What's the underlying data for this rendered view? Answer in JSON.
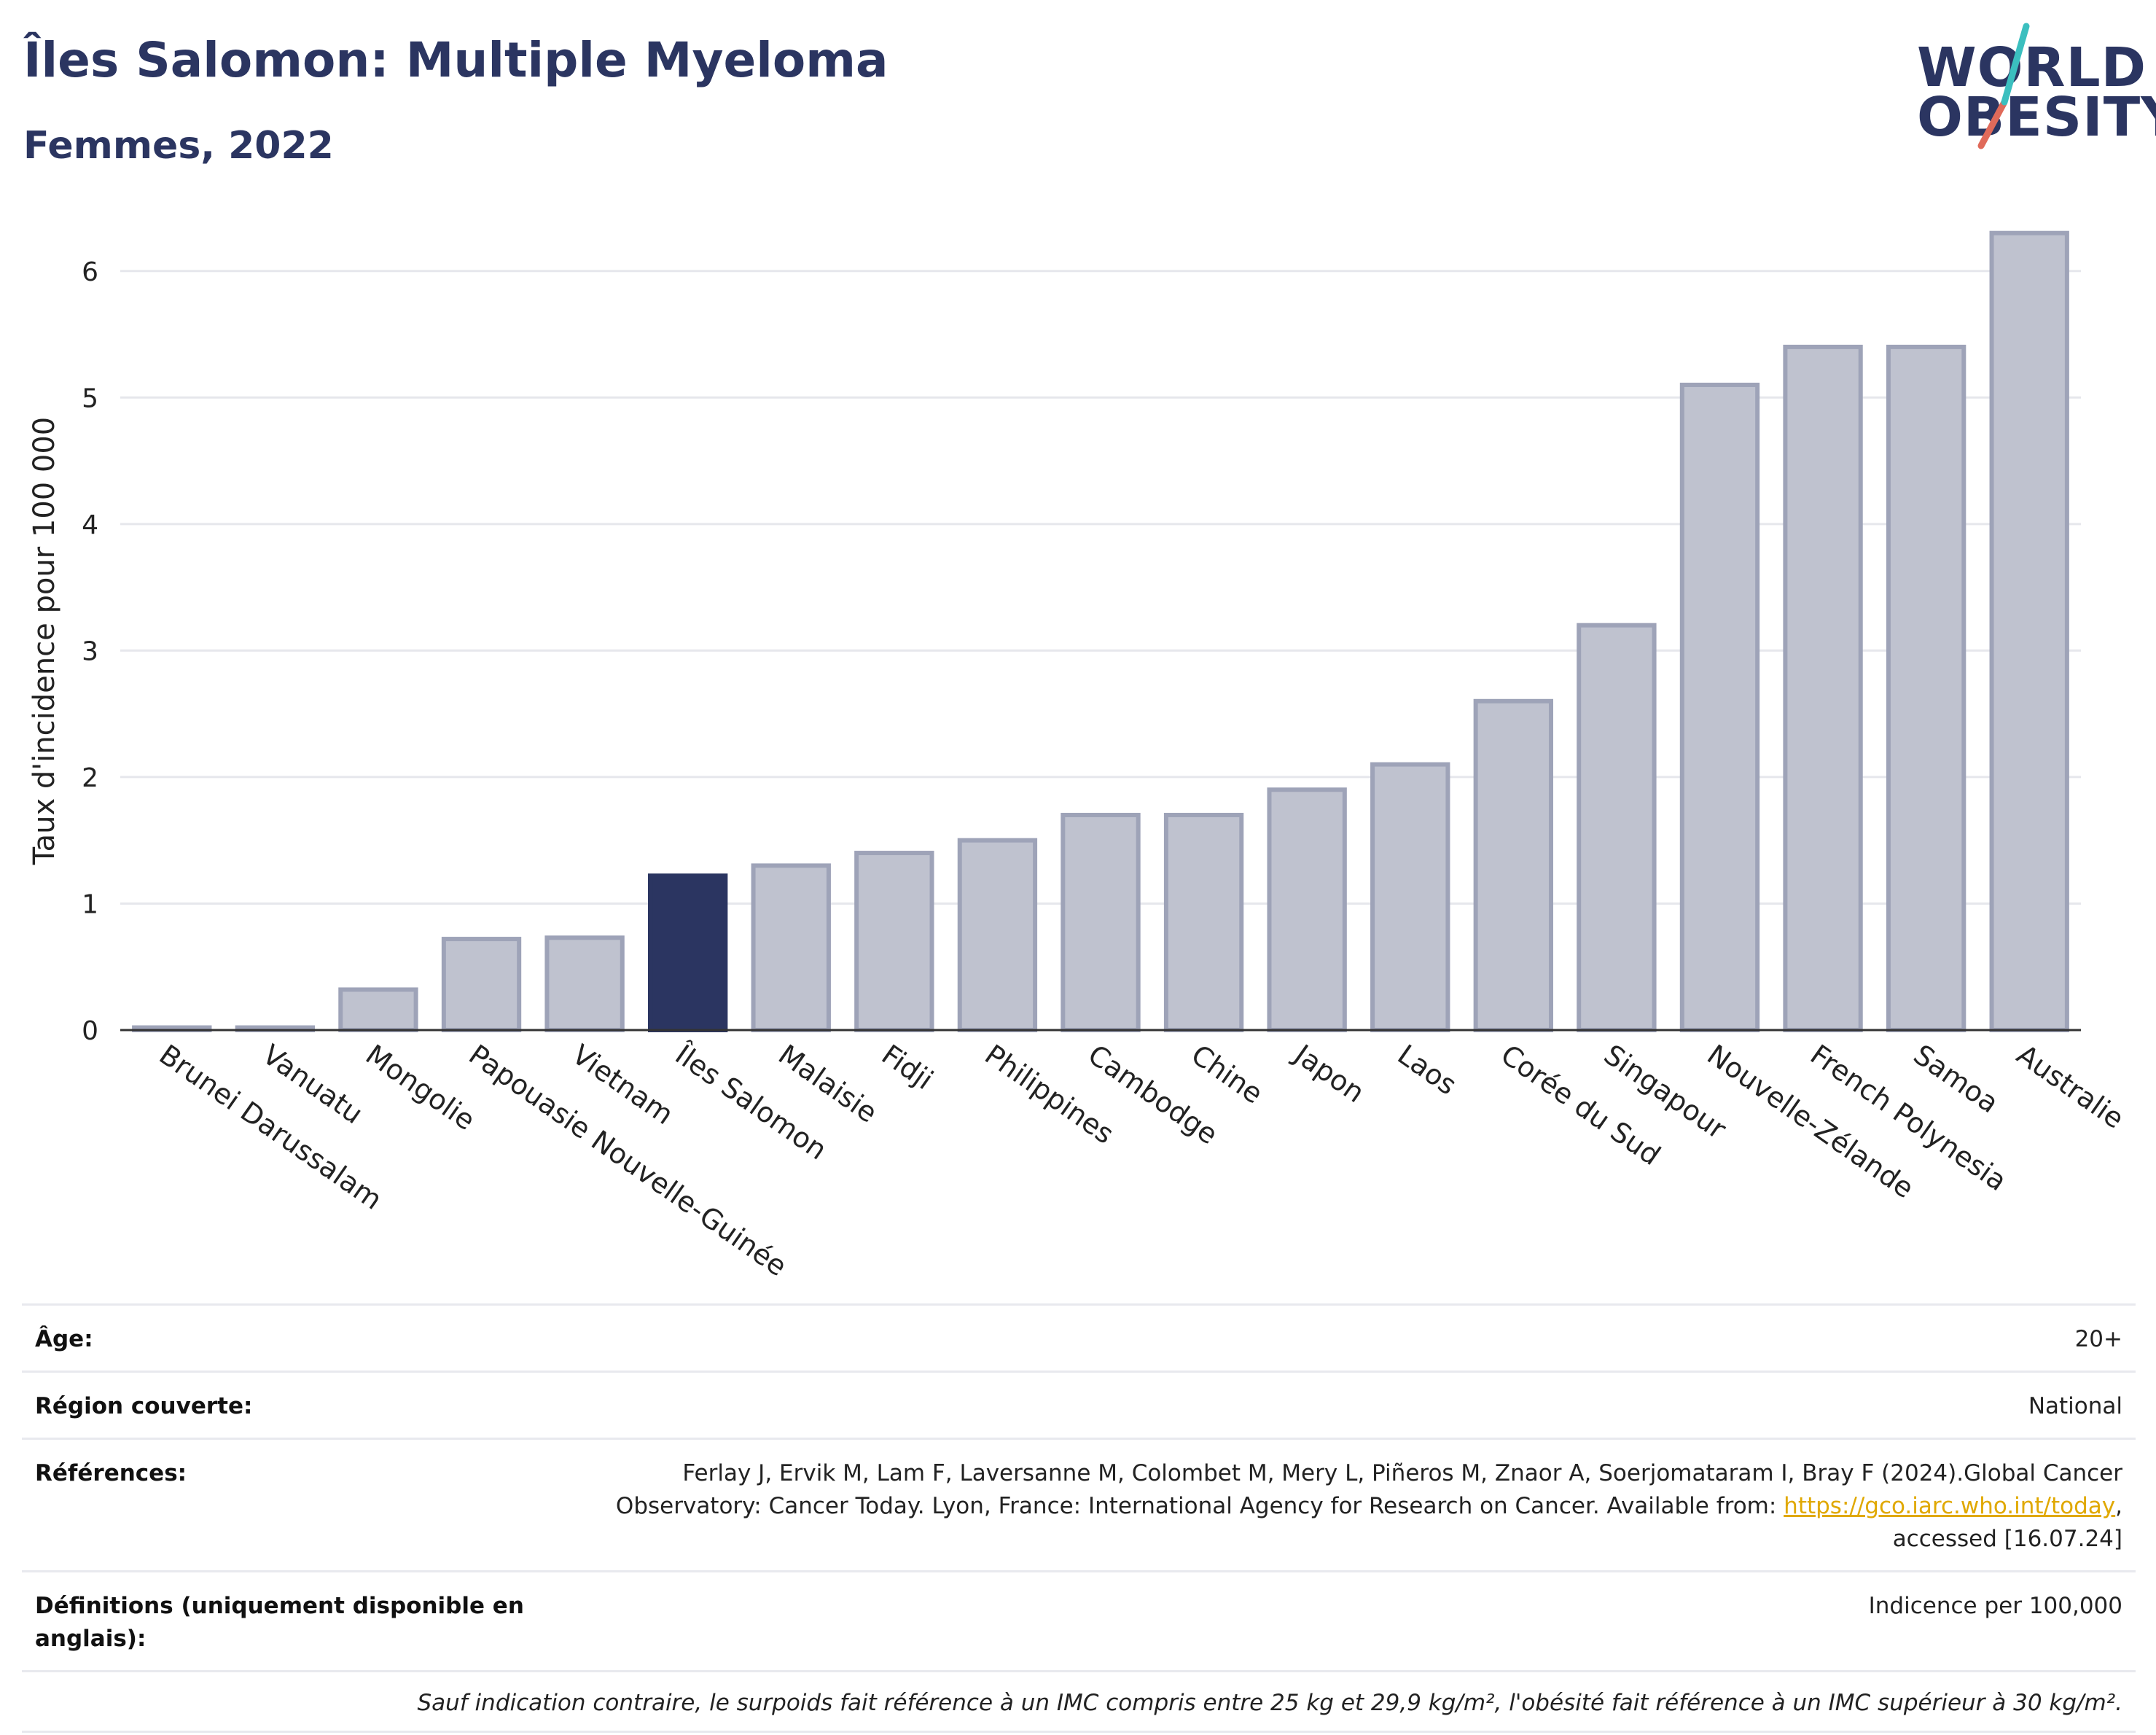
{
  "header": {
    "title": "Îles Salomon: Multiple Myeloma",
    "subtitle": "Femmes, 2022"
  },
  "logo": {
    "line1": "WORLD",
    "line2": "OBESITY"
  },
  "colors": {
    "highlight": "#2b3561",
    "bar_fill": "#bfc2cf",
    "bar_stroke": "#9ea3b8",
    "grid": "#e6e7ec",
    "logo_slash_teal": "#3bbfbf",
    "logo_slash_red": "#e06a5a"
  },
  "chart_data": {
    "type": "bar",
    "title": "Îles Salomon: Multiple Myeloma",
    "subtitle": "Femmes, 2022",
    "xlabel": "",
    "ylabel": "Taux d'incidence pour 100 000",
    "ylim": [
      0,
      6.5
    ],
    "yticks": [
      0,
      1,
      2,
      3,
      4,
      5,
      6
    ],
    "grid": true,
    "highlight": "Îles Salomon",
    "categories": [
      "Brunei Darussalam",
      "Vanuatu",
      "Mongolie",
      "Papouasie Nouvelle-Guinée",
      "Vietnam",
      "Îles Salomon",
      "Malaisie",
      "Fidji",
      "Philippines",
      "Cambodge",
      "Chine",
      "Japon",
      "Laos",
      "Corée du Sud",
      "Singapour",
      "Nouvelle-Zélande",
      "French Polynesia",
      "Samoa",
      "Australie"
    ],
    "values": [
      0.02,
      0.02,
      0.32,
      0.72,
      0.73,
      1.22,
      1.3,
      1.4,
      1.5,
      1.7,
      1.7,
      1.9,
      2.1,
      2.6,
      3.2,
      5.1,
      5.4,
      5.4,
      6.3
    ]
  },
  "info": {
    "age_label": "Âge:",
    "age_value": "20+",
    "region_label": "Région couverte:",
    "region_value": "National",
    "ref_label": "Références:",
    "ref_text1": "Ferlay J, Ervik M, Lam F, Laversanne M, Colombet M, Mery L, Piñeros M, Znaor A, Soerjomataram I, Bray F (2024).Global Cancer Observatory: Cancer Today. Lyon, France: International Agency for Research on Cancer. Available from: ",
    "ref_link": "https://gco.iarc.who.int/today",
    "ref_text2": ", accessed [16.07.24]",
    "def_label": "Définitions (uniquement disponible en anglais):",
    "def_value": "Indicence per 100,000",
    "note": "Sauf indication contraire, le surpoids fait référence à un IMC compris entre 25 kg et 29,9 kg/m², l'obésité fait référence à un IMC supérieur à 30 kg/m²."
  }
}
